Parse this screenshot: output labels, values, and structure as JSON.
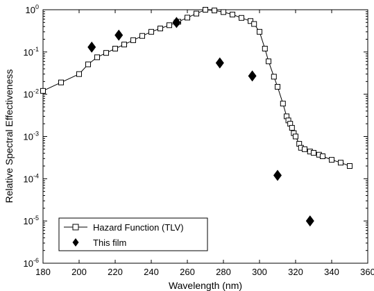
{
  "chart_data": {
    "type": "scatter",
    "xlabel": "Wavelength (nm)",
    "ylabel": "Relative Spectral Effectiveness",
    "xlim": [
      180,
      360
    ],
    "ylim": [
      1e-06,
      1
    ],
    "yscale": "log",
    "grid": false,
    "legend_position": "bottom-left",
    "x_ticks": [
      180,
      200,
      220,
      240,
      260,
      280,
      300,
      320,
      340,
      360
    ],
    "y_ticks": [
      {
        "value": 1,
        "base": "10",
        "exp": "0"
      },
      {
        "value": 0.1,
        "base": "10",
        "exp": "-1"
      },
      {
        "value": 0.01,
        "base": "10",
        "exp": "-2"
      },
      {
        "value": 0.001,
        "base": "10",
        "exp": "-3"
      },
      {
        "value": 0.0001,
        "base": "10",
        "exp": "-4"
      },
      {
        "value": 1e-05,
        "base": "10",
        "exp": "-5"
      },
      {
        "value": 1e-06,
        "base": "10",
        "exp": "-6"
      }
    ],
    "series": [
      {
        "name": "Hazard Function (TLV)",
        "style": "line-open-square",
        "color": "#000000",
        "x": [
          180,
          190,
          200,
          205,
          210,
          215,
          220,
          225,
          230,
          235,
          240,
          245,
          250,
          254,
          255,
          260,
          265,
          270,
          275,
          280,
          285,
          290,
          295,
          297,
          300,
          303,
          305,
          308,
          310,
          313,
          315,
          316,
          317,
          318,
          319,
          320,
          322,
          323,
          325,
          328,
          330,
          333,
          335,
          340,
          345,
          350
        ],
        "y": [
          0.012,
          0.019,
          0.03,
          0.051,
          0.075,
          0.095,
          0.12,
          0.15,
          0.19,
          0.24,
          0.3,
          0.36,
          0.43,
          0.5,
          0.52,
          0.65,
          0.81,
          1.0,
          0.96,
          0.88,
          0.77,
          0.64,
          0.54,
          0.46,
          0.3,
          0.12,
          0.06,
          0.026,
          0.015,
          0.006,
          0.003,
          0.0024,
          0.002,
          0.0016,
          0.0012,
          0.001,
          0.00067,
          0.00054,
          0.0005,
          0.00044,
          0.00041,
          0.00037,
          0.00034,
          0.00028,
          0.00024,
          0.0002
        ]
      },
      {
        "name": "This film",
        "style": "filled-diamond",
        "color": "#000000",
        "x": [
          207,
          222,
          254,
          278,
          296,
          310,
          328
        ],
        "y": [
          0.13,
          0.25,
          0.5,
          0.055,
          0.027,
          0.00012,
          1e-05
        ]
      }
    ]
  }
}
